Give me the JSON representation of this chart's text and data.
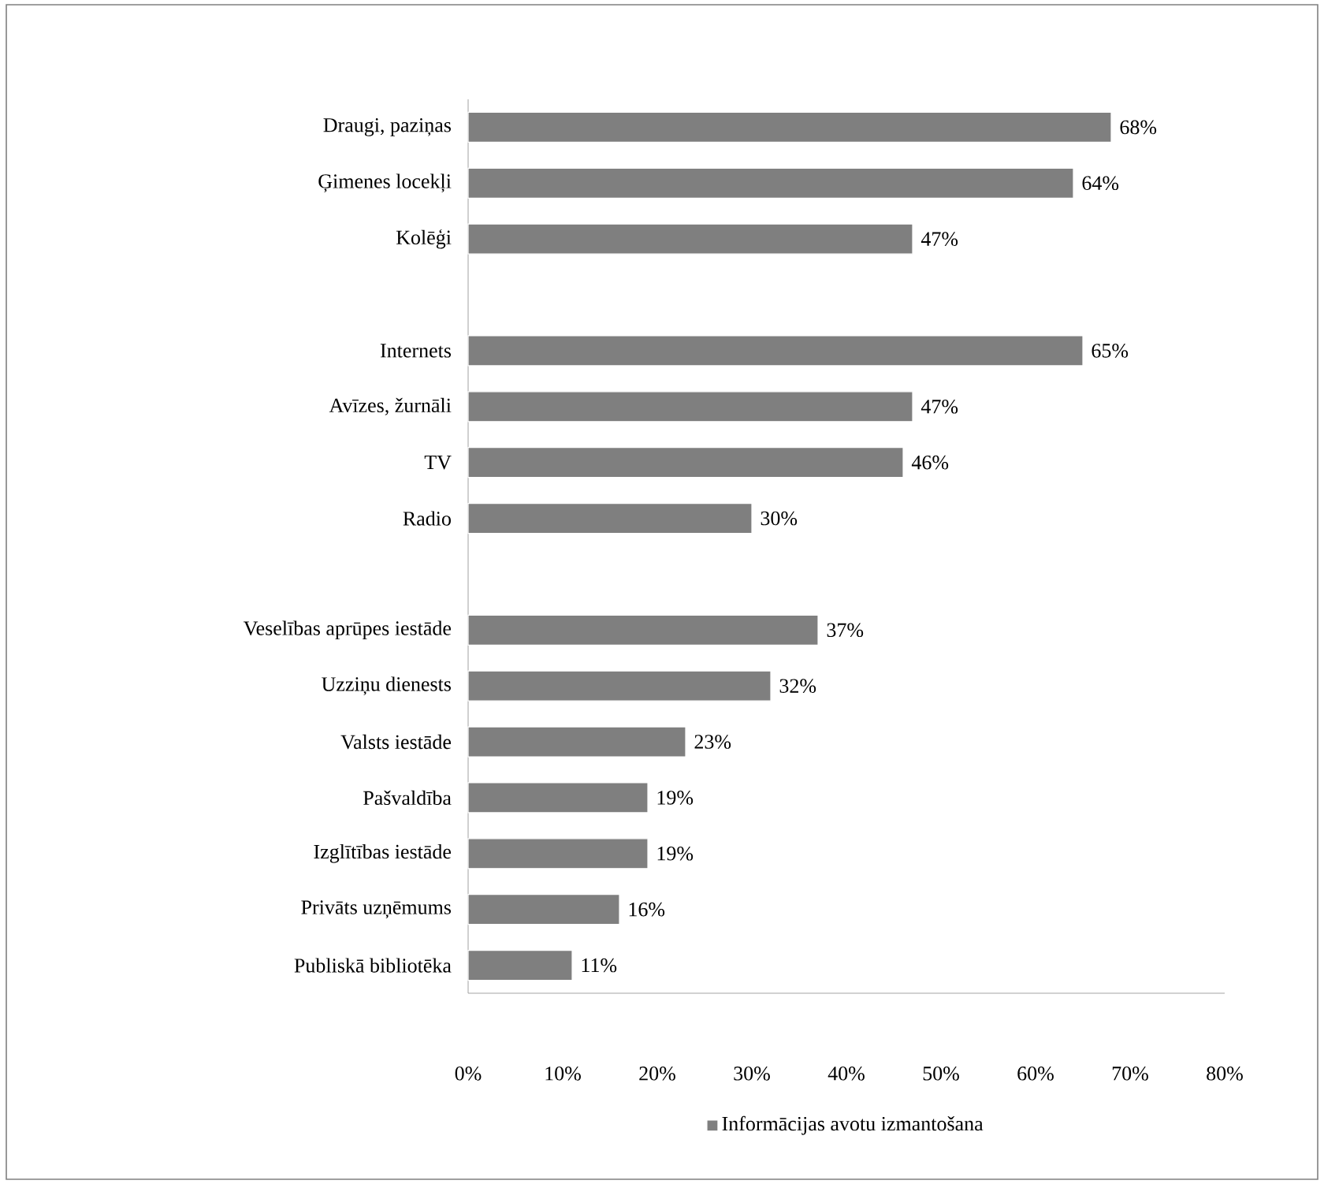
{
  "chart_data": {
    "type": "bar",
    "orientation": "horizontal",
    "categories": [
      "Draugi, paziņas",
      "Ģimenes locekļi",
      "Kolēģi",
      null,
      "Internets",
      "Avīzes, žurnāli",
      "TV",
      "Radio",
      null,
      "Veselības aprūpes iestāde",
      "Uzziņu dienests",
      "Valsts iestāde",
      "Pašvaldība",
      "Izglītības iestāde",
      "Privāts uzņēmums",
      "Publiskā bibliotēka"
    ],
    "series": [
      {
        "name": "Informācijas avotu izmantošana",
        "color": "#7f7f7f",
        "values": [
          68,
          64,
          47,
          null,
          65,
          47,
          46,
          30,
          null,
          37,
          32,
          23,
          19,
          19,
          16,
          11
        ],
        "value_labels": [
          "68%",
          "64%",
          "47%",
          null,
          "65%",
          "47%",
          "46%",
          "30%",
          null,
          "37%",
          "32%",
          "23%",
          "19%",
          "19%",
          "16%",
          "11%"
        ]
      }
    ],
    "xlim": [
      0,
      80
    ],
    "xticks": [
      {
        "value": 0,
        "label": "0%"
      },
      {
        "value": 10,
        "label": "10%"
      },
      {
        "value": 20,
        "label": "20%"
      },
      {
        "value": 30,
        "label": "30%"
      },
      {
        "value": 40,
        "label": "40%"
      },
      {
        "value": 50,
        "label": "50%"
      },
      {
        "value": 60,
        "label": "60%"
      },
      {
        "value": 70,
        "label": "70%"
      },
      {
        "value": 80,
        "label": "80%"
      }
    ],
    "legend": "bottom"
  }
}
